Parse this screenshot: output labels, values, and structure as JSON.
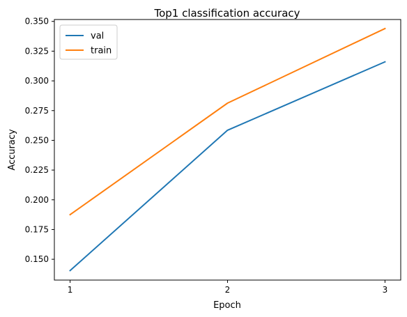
{
  "chart_data": {
    "type": "line",
    "title": "Top1 classification accuracy",
    "xlabel": "Epoch",
    "ylabel": "Accuracy",
    "x": [
      1,
      2,
      3
    ],
    "xticks": [
      "1",
      "2",
      "3"
    ],
    "yticks": [
      "0.150",
      "0.175",
      "0.200",
      "0.225",
      "0.250",
      "0.275",
      "0.300",
      "0.325",
      "0.350"
    ],
    "ylim": [
      0.1325,
      0.3516
    ],
    "xlim": [
      0.9,
      3.1
    ],
    "grid": false,
    "legend_position": "top-left",
    "series": [
      {
        "name": "val",
        "color": "#1f77b4",
        "values": [
          0.1405,
          0.2585,
          0.316
        ]
      },
      {
        "name": "train",
        "color": "#ff7f0e",
        "values": [
          0.1875,
          0.2813,
          0.344
        ]
      }
    ]
  }
}
